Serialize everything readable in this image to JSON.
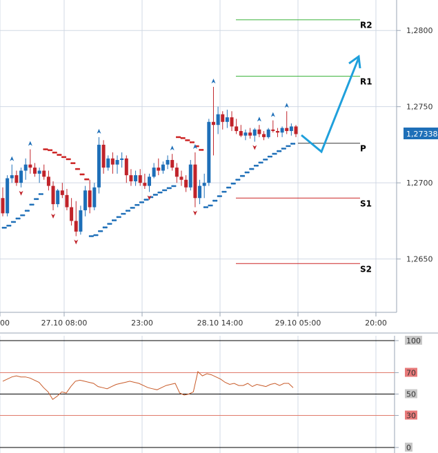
{
  "colors": {
    "grid": "#d0d8e4",
    "up_candle": "#1e6fb8",
    "down_candle": "#c0232a",
    "resistance": "#3cb43c",
    "support": "#cc2222",
    "pivot": "#333333",
    "forecast_arrow": "#1fa0dc",
    "psar_up": "#1e6fb8",
    "psar_down": "#cc2222",
    "rsi_line": "#c85a28",
    "rsi_band": "#e07a6a",
    "rsi_tag_bg": "#e87a7a",
    "price_tag_bg": "#1e6fb8"
  },
  "chart_data": [
    {
      "type": "candlestick",
      "x_ticks": [
        "00",
        "27.10 08:00",
        "23:00",
        "28.10 14:00",
        "29.10 05:00",
        "20:00"
      ],
      "y_ticks": [
        "1,2800",
        "1,2750",
        "1,2700",
        "1,2650"
      ],
      "ylim": [
        1.2615,
        1.282
      ],
      "current_price": "1,27338",
      "grid": true,
      "levels": [
        {
          "name": "R2",
          "value": 1.2807
        },
        {
          "name": "R1",
          "value": 1.277
        },
        {
          "name": "P",
          "value": 1.2726
        },
        {
          "name": "S1",
          "value": 1.269
        },
        {
          "name": "S2",
          "value": 1.2647
        }
      ],
      "candles": [
        [
          1.269,
          1.2697,
          1.2678,
          1.268
        ],
        [
          1.268,
          1.2705,
          1.2678,
          1.2703
        ],
        [
          1.2703,
          1.2712,
          1.27,
          1.2705
        ],
        [
          1.2705,
          1.2708,
          1.2698,
          1.27
        ],
        [
          1.27,
          1.271,
          1.2697,
          1.2708
        ],
        [
          1.2708,
          1.2716,
          1.2702,
          1.2712
        ],
        [
          1.2712,
          1.2722,
          1.2706,
          1.271
        ],
        [
          1.271,
          1.2713,
          1.2704,
          1.2706
        ],
        [
          1.2706,
          1.271,
          1.27,
          1.2708
        ],
        [
          1.2708,
          1.2712,
          1.2702,
          1.2704
        ],
        [
          1.2704,
          1.2708,
          1.2695,
          1.2698
        ],
        [
          1.2698,
          1.2701,
          1.2682,
          1.2686
        ],
        [
          1.2686,
          1.2696,
          1.2684,
          1.2695
        ],
        [
          1.2695,
          1.27,
          1.269,
          1.2692
        ],
        [
          1.2692,
          1.2696,
          1.2682,
          1.2684
        ],
        [
          1.2684,
          1.269,
          1.2672,
          1.2675
        ],
        [
          1.2675,
          1.2688,
          1.2665,
          1.2668
        ],
        [
          1.2668,
          1.2685,
          1.2666,
          1.2682
        ],
        [
          1.2682,
          1.2698,
          1.2678,
          1.2695
        ],
        [
          1.2695,
          1.2702,
          1.268,
          1.2684
        ],
        [
          1.2684,
          1.27,
          1.2682,
          1.2697
        ],
        [
          1.2697,
          1.273,
          1.2693,
          1.2725
        ],
        [
          1.2725,
          1.2728,
          1.2706,
          1.271
        ],
        [
          1.271,
          1.2718,
          1.2708,
          1.2716
        ],
        [
          1.2716,
          1.272,
          1.2706,
          1.2712
        ],
        [
          1.2712,
          1.2718,
          1.2706,
          1.2715
        ],
        [
          1.2715,
          1.272,
          1.271,
          1.2716
        ],
        [
          1.2716,
          1.2718,
          1.27,
          1.2705
        ],
        [
          1.2705,
          1.2709,
          1.2698,
          1.2701
        ],
        [
          1.2701,
          1.2708,
          1.2698,
          1.2705
        ],
        [
          1.2705,
          1.2709,
          1.2698,
          1.27
        ],
        [
          1.27,
          1.2706,
          1.2696,
          1.2698
        ],
        [
          1.2698,
          1.2706,
          1.2694,
          1.2704
        ],
        [
          1.2704,
          1.2713,
          1.2703,
          1.271
        ],
        [
          1.271,
          1.2716,
          1.2705,
          1.2708
        ],
        [
          1.2708,
          1.2714,
          1.2706,
          1.2712
        ],
        [
          1.2712,
          1.2718,
          1.2709,
          1.2715
        ],
        [
          1.2715,
          1.2719,
          1.2708,
          1.271
        ],
        [
          1.271,
          1.2713,
          1.27,
          1.2704
        ],
        [
          1.2704,
          1.2708,
          1.2698,
          1.2702
        ],
        [
          1.2702,
          1.2705,
          1.2694,
          1.2697
        ],
        [
          1.2697,
          1.2715,
          1.2695,
          1.2712
        ],
        [
          1.2712,
          1.272,
          1.2684,
          1.269
        ],
        [
          1.269,
          1.2702,
          1.2686,
          1.2698
        ],
        [
          1.2698,
          1.2706,
          1.269,
          1.27
        ],
        [
          1.27,
          1.2742,
          1.2698,
          1.274
        ],
        [
          1.274,
          1.2763,
          1.2718,
          1.2738
        ],
        [
          1.2738,
          1.275,
          1.2732,
          1.2745
        ],
        [
          1.2745,
          1.2747,
          1.2735,
          1.274
        ],
        [
          1.274,
          1.2748,
          1.2736,
          1.2743
        ],
        [
          1.2743,
          1.2747,
          1.2734,
          1.2737
        ],
        [
          1.2737,
          1.2742,
          1.2732,
          1.2734
        ],
        [
          1.2734,
          1.2738,
          1.273,
          1.2731
        ],
        [
          1.2731,
          1.2735,
          1.2728,
          1.2733
        ],
        [
          1.2733,
          1.2736,
          1.2729,
          1.2731
        ],
        [
          1.2731,
          1.2736,
          1.2727,
          1.2735
        ],
        [
          1.2735,
          1.2738,
          1.273,
          1.2732
        ],
        [
          1.2732,
          1.2734,
          1.2728,
          1.273
        ],
        [
          1.273,
          1.2736,
          1.2729,
          1.2735
        ],
        [
          1.2735,
          1.2741,
          1.2733,
          1.2734
        ],
        [
          1.2734,
          1.2736,
          1.273,
          1.2733
        ],
        [
          1.2733,
          1.2737,
          1.273,
          1.2736
        ],
        [
          1.2736,
          1.2747,
          1.2732,
          1.2734
        ],
        [
          1.2734,
          1.2739,
          1.2731,
          1.2737
        ],
        [
          1.2737,
          1.2738,
          1.273,
          1.2732
        ]
      ]
    },
    {
      "type": "line",
      "name": "RSI",
      "y_ticks": [
        "100",
        "70",
        "50",
        "30",
        "0"
      ],
      "ylim": [
        0,
        100
      ],
      "bands": [
        70,
        50,
        30
      ],
      "values": [
        62,
        64,
        66,
        67,
        66,
        66,
        65,
        63,
        61,
        56,
        52,
        45,
        48,
        52,
        51,
        57,
        62,
        63,
        62,
        61,
        60,
        57,
        56,
        55,
        57,
        59,
        60,
        61,
        62,
        61,
        60,
        58,
        56,
        55,
        54,
        56,
        58,
        59,
        60,
        51,
        49,
        50,
        52,
        71,
        67,
        69,
        68,
        66,
        64,
        61,
        59,
        60,
        58,
        58,
        60,
        57,
        59,
        58,
        57,
        59,
        60,
        58,
        60,
        60,
        56
      ]
    }
  ]
}
